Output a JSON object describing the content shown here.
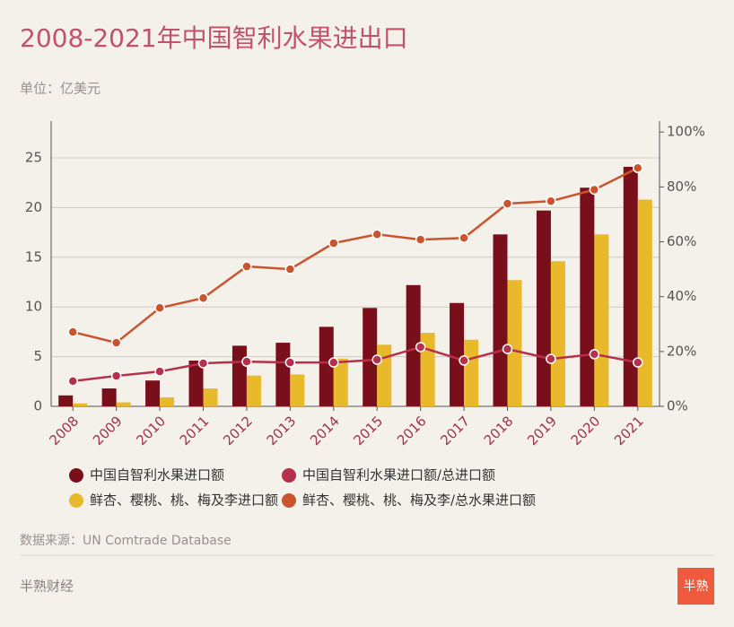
{
  "header": {
    "title": "2008-2021年中国智利水果进出口",
    "subtitle": "单位：亿美元"
  },
  "chart_data": {
    "type": "bar",
    "categories": [
      "2008",
      "2009",
      "2010",
      "2011",
      "2012",
      "2013",
      "2014",
      "2015",
      "2016",
      "2017",
      "2018",
      "2019",
      "2020",
      "2021"
    ],
    "series": [
      {
        "name": "中国自智利水果进口额",
        "type": "bar",
        "color": "#7a0f1c",
        "values": [
          1.1,
          1.8,
          2.6,
          4.6,
          6.1,
          6.4,
          8.0,
          9.9,
          12.2,
          10.4,
          17.3,
          19.7,
          22.0,
          24.1
        ]
      },
      {
        "name": "中国自智利水果进口额/总进口额",
        "type": "line",
        "axis": "y2",
        "color": "#b5304a",
        "values": [
          9.2,
          11.1,
          12.7,
          15.7,
          16.3,
          16,
          16,
          17,
          21.6,
          16.7,
          20.9,
          17.3,
          19,
          16
        ]
      },
      {
        "name": "鲜杏、樱桃、桃、梅及李进口额",
        "type": "bar",
        "color": "#e8b92a",
        "values": [
          0.3,
          0.4,
          0.9,
          1.8,
          3.1,
          3.2,
          4.8,
          6.2,
          7.4,
          6.7,
          12.7,
          14.6,
          17.3,
          20.8
        ]
      },
      {
        "name": "鲜杏、樱桃、桃、梅及李/总水果进口额",
        "type": "line",
        "axis": "y2",
        "color": "#c9552e",
        "values": [
          27.1,
          23.2,
          35.9,
          39.5,
          51,
          50,
          59.5,
          62.7,
          60.8,
          61.4,
          73.9,
          74.8,
          79,
          86.9
        ]
      }
    ],
    "ylim": [
      0,
      28.7
    ],
    "yticks": [
      0,
      5,
      10,
      15,
      20,
      25
    ],
    "y2lim": [
      0,
      104
    ],
    "y2ticks": [
      {
        "value": 0,
        "label": "0%"
      },
      {
        "value": 20,
        "label": "20%"
      },
      {
        "value": 40,
        "label": "40%"
      },
      {
        "value": 60,
        "label": "60%"
      },
      {
        "value": 80,
        "label": "80%"
      },
      {
        "value": 100,
        "label": "100%"
      }
    ],
    "grid": true
  },
  "footer": {
    "source": "数据来源：UN Comtrade Database",
    "brand": "半熟财经",
    "logo": "半熟"
  }
}
